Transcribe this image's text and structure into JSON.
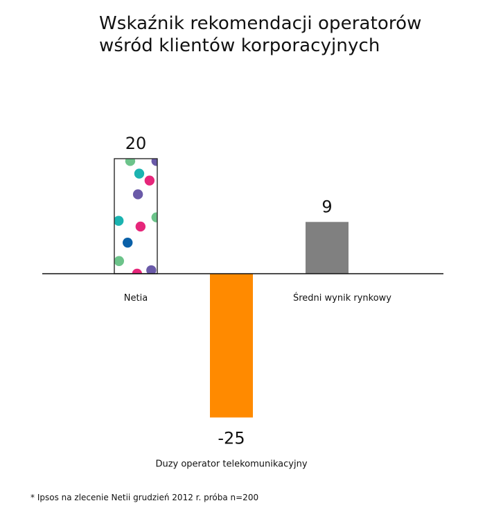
{
  "title_lines": [
    "Wskaźnik rekomendacji operatorów",
    "wśród klientów korporacyjnych"
  ],
  "footnote": "* Ipsos na zlecenie Netii grudzień 2012 r. próba n=200",
  "colors": {
    "netia_fill": "#ffffff",
    "netia_border": "#222222",
    "duzy_operator": "#ff8a00",
    "sredni_wynik": "#808080",
    "axis": "#111111",
    "dots": [
      "#6cc38a",
      "#1bb3b0",
      "#e6267a",
      "#6a5aa8",
      "#0a60a8"
    ]
  },
  "chart_data": {
    "type": "bar",
    "categories": [
      "Netia",
      "Duzy operator telekomunikacyjny",
      "Średni wynik rynkowy"
    ],
    "values": [
      20,
      -25,
      9
    ],
    "value_labels": [
      "20",
      "-25",
      "9"
    ],
    "title": "Wskaźnik rekomendacji operatorów wśród klientów korporacyjnych",
    "xlabel": "",
    "ylabel": "",
    "grid": false,
    "legend": "none"
  }
}
